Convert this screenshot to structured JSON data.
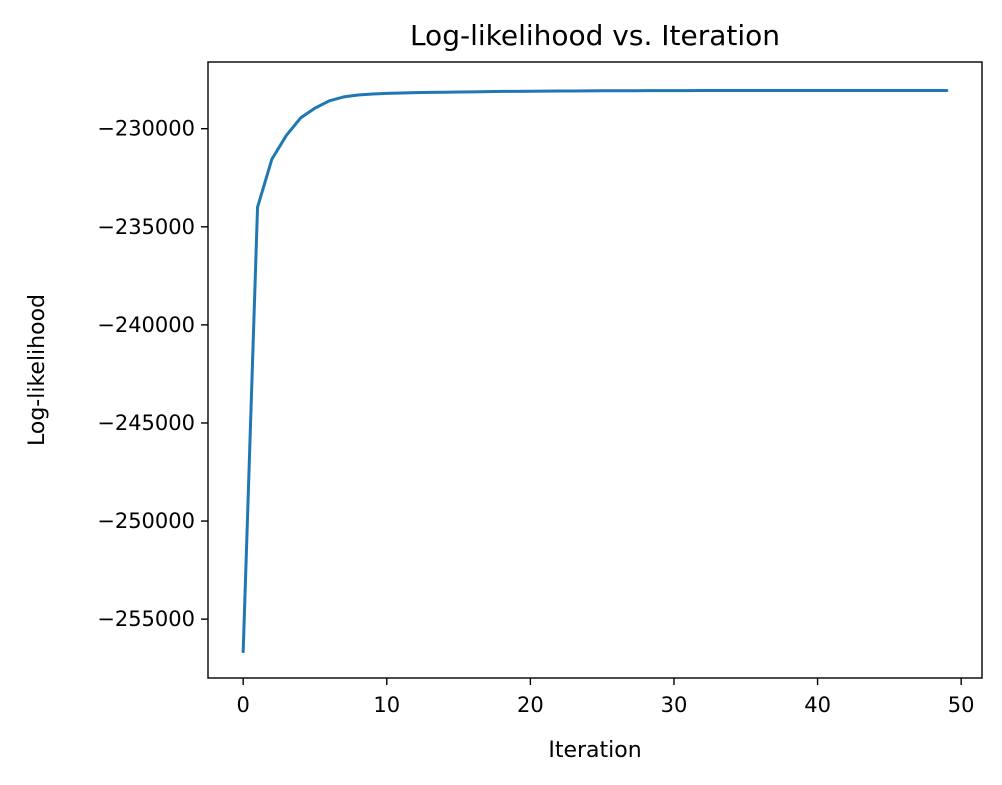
{
  "chart_data": {
    "type": "line",
    "title": "Log-likelihood vs. Iteration",
    "xlabel": "Iteration",
    "ylabel": "Log-likelihood",
    "xlim": [
      -2.45,
      51.45
    ],
    "ylim": [
      -258000,
      -226600
    ],
    "xticks": [
      0,
      10,
      20,
      30,
      40,
      50
    ],
    "yticks": [
      -255000,
      -250000,
      -245000,
      -240000,
      -235000,
      -230000
    ],
    "grid": false,
    "line_color": "#1f77b4",
    "series": [
      {
        "x": [
          0,
          1,
          2,
          3,
          4,
          5,
          6,
          7,
          8,
          9,
          10,
          11,
          12,
          13,
          14,
          15,
          16,
          17,
          18,
          19,
          20,
          21,
          22,
          23,
          24,
          25,
          26,
          27,
          28,
          29,
          30,
          31,
          32,
          33,
          34,
          35,
          36,
          37,
          38,
          39,
          40,
          41,
          42,
          43,
          44,
          45,
          46,
          47,
          48,
          49
        ],
        "y": [
          -256650,
          -234000,
          -231550,
          -230350,
          -229450,
          -228950,
          -228580,
          -228380,
          -228280,
          -228230,
          -228200,
          -228180,
          -228160,
          -228150,
          -228140,
          -228130,
          -228120,
          -228110,
          -228100,
          -228095,
          -228090,
          -228085,
          -228080,
          -228075,
          -228070,
          -228068,
          -228066,
          -228064,
          -228062,
          -228060,
          -228058,
          -228057,
          -228056,
          -228055,
          -228054,
          -228053,
          -228052,
          -228051,
          -228050,
          -228050,
          -228050,
          -228050,
          -228050,
          -228050,
          -228050,
          -228050,
          -228050,
          -228050,
          -228050,
          -228050
        ]
      }
    ]
  }
}
